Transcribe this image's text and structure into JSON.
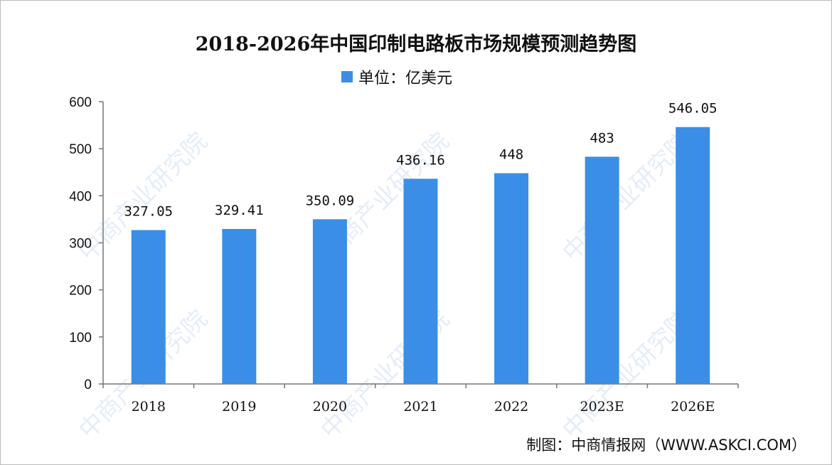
{
  "chart_data": {
    "type": "bar",
    "title": "2018-2026年中国印制电路板市场规模预测趋势图",
    "legend": "单位：亿美元",
    "categories": [
      "2018",
      "2019",
      "2020",
      "2021",
      "2022",
      "2023E",
      "2026E"
    ],
    "values": [
      327.05,
      329.41,
      350.09,
      436.16,
      448,
      483,
      546.05
    ],
    "value_labels": [
      "327.05",
      "329.41",
      "350.09",
      "436.16",
      "448",
      "483",
      "546.05"
    ],
    "ylim": [
      0,
      600
    ],
    "yticks": [
      0,
      100,
      200,
      300,
      400,
      500,
      600
    ],
    "xlabel": "",
    "ylabel": "",
    "grid": false,
    "legend_position": "top-center",
    "bar_color": "#3a8ee6"
  },
  "source": "制图：中商情报网（WWW.ASKCI.COM）",
  "watermark": "中商产业研究院"
}
